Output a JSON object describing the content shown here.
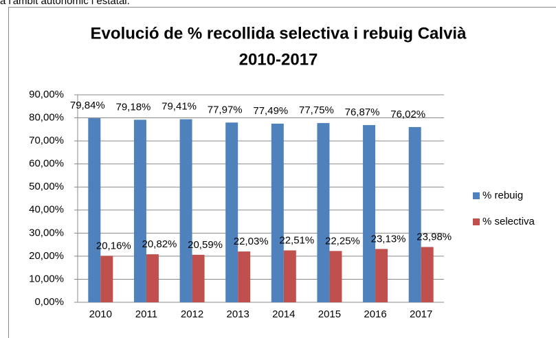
{
  "header_text": "a l'àmbit autonòmic i estatal.",
  "chart_data": {
    "type": "bar",
    "title": [
      "Evolució de % recollida selectiva i rebuig Calvià",
      "2010-2017"
    ],
    "categories": [
      "2010",
      "2011",
      "2012",
      "2013",
      "2014",
      "2015",
      "2016",
      "2017"
    ],
    "series": [
      {
        "name": "% rebuig",
        "color": "#4f81bd",
        "values": [
          79.84,
          79.18,
          79.41,
          77.97,
          77.49,
          77.75,
          76.87,
          76.02
        ],
        "value_labels": [
          "79,84%",
          "79,18%",
          "79,41%",
          "77,97%",
          "77,49%",
          "77,75%",
          "76,87%",
          "76,02%"
        ]
      },
      {
        "name": "% selectiva",
        "color": "#c0504d",
        "values": [
          20.16,
          20.82,
          20.59,
          22.03,
          22.51,
          22.25,
          23.13,
          23.98
        ],
        "value_labels": [
          "20,16%",
          "20,82%",
          "20,59%",
          "22,03%",
          "22,51%",
          "22,25%",
          "23,13%",
          "23,98%"
        ]
      }
    ],
    "ylim": [
      0,
      90
    ],
    "yticks": [
      {
        "value": 0,
        "label": "0,00%"
      },
      {
        "value": 10,
        "label": "10,00%"
      },
      {
        "value": 20,
        "label": "20,00%"
      },
      {
        "value": 30,
        "label": "30,00%"
      },
      {
        "value": 40,
        "label": "40,00%"
      },
      {
        "value": 50,
        "label": "50,00%"
      },
      {
        "value": 60,
        "label": "60,00%"
      },
      {
        "value": 70,
        "label": "70,00%"
      },
      {
        "value": 80,
        "label": "80,00%"
      },
      {
        "value": 90,
        "label": "90,00%"
      }
    ],
    "grid": true,
    "legend": "right"
  }
}
